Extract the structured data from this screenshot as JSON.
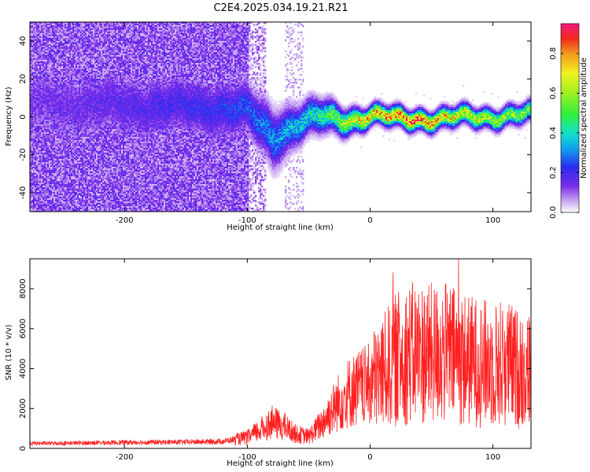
{
  "title": "C2E4.2025.034.19.21.R21",
  "chart_data": [
    {
      "type": "heatmap",
      "xlabel": "Height of straight line (km)",
      "ylabel": "Frequency (Hz)",
      "xlim": [
        -277,
        131
      ],
      "ylim": [
        -50,
        50
      ],
      "x_ticks": [
        -200,
        -100,
        0,
        100
      ],
      "y_ticks": [
        -40,
        -20,
        0,
        20,
        40
      ],
      "colorbar": {
        "label": "Normalized spectral amplitude",
        "range": [
          0,
          0.95
        ],
        "ticks": [
          0.0,
          0.2,
          0.4,
          0.6,
          0.8
        ],
        "colormap": "rainbow (purple-blue-cyan-green-yellow-red-magenta)"
      },
      "ridge": [
        {
          "x": -180,
          "freq": 6,
          "amp": 0.18,
          "spread": 10
        },
        {
          "x": -120,
          "freq": 5,
          "amp": 0.22,
          "spread": 9
        },
        {
          "x": -100,
          "freq": 3,
          "amp": 0.25,
          "spread": 8
        },
        {
          "x": -80,
          "freq": -10,
          "amp": 0.3,
          "spread": 9
        },
        {
          "x": -60,
          "freq": -3,
          "amp": 0.35,
          "spread": 6
        },
        {
          "x": -40,
          "freq": 0,
          "amp": 0.45,
          "spread": 5
        },
        {
          "x": -20,
          "freq": -1,
          "amp": 0.6,
          "spread": 4
        },
        {
          "x": 0,
          "freq": 1,
          "amp": 0.75,
          "spread": 3
        },
        {
          "x": 20,
          "freq": -1,
          "amp": 0.8,
          "spread": 3
        },
        {
          "x": 40,
          "freq": 0,
          "amp": 0.85,
          "spread": 3
        },
        {
          "x": 60,
          "freq": -1,
          "amp": 0.7,
          "spread": 3
        },
        {
          "x": 80,
          "freq": 0,
          "amp": 0.65,
          "spread": 3
        },
        {
          "x": 100,
          "freq": 1,
          "amp": 0.6,
          "spread": 3
        },
        {
          "x": 131,
          "freq": 1,
          "amp": 0.55,
          "spread": 3
        }
      ]
    },
    {
      "type": "line",
      "xlabel": "Height of straight line (km)",
      "ylabel": "SNR (10 * v/v)",
      "xlim": [
        -277,
        131
      ],
      "ylim": [
        0,
        9500
      ],
      "x_ticks": [
        -200,
        -100,
        0,
        100
      ],
      "y_ticks": [
        0,
        2000,
        4000,
        6000,
        8000
      ],
      "color": "#ff2020",
      "series": [
        {
          "x": [
            -277,
            -250,
            -200,
            -150,
            -120,
            -100,
            -90,
            -80,
            -70,
            -60,
            -50,
            -40,
            -30,
            -20,
            -10,
            0,
            10,
            20,
            30,
            40,
            50,
            60,
            70,
            80,
            90,
            100,
            110,
            120,
            131
          ],
          "values": [
            250,
            260,
            300,
            320,
            350,
            550,
            900,
            1300,
            1100,
            700,
            600,
            1200,
            2000,
            2700,
            3000,
            3200,
            3700,
            4300,
            4600,
            4700,
            4600,
            4700,
            4500,
            4300,
            4200,
            4100,
            4200,
            3900,
            3800
          ]
        }
      ]
    }
  ]
}
